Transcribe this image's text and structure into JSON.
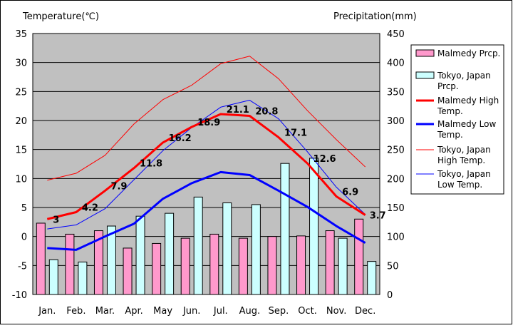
{
  "chart_data": {
    "type": "bar",
    "categories": [
      "Jan.",
      "Feb.",
      "Mar.",
      "Apr.",
      "May",
      "Jun.",
      "Jul.",
      "Aug.",
      "Sep.",
      "Oct.",
      "Nov.",
      "Dec."
    ],
    "y_left_label": "Temperature(℃)",
    "y_right_label": "Precipitation(mm)",
    "y_left_range": [
      -10,
      35
    ],
    "y_right_range": [
      0,
      450
    ],
    "y_left_ticks": [
      "35",
      "30",
      "25",
      "20",
      "15",
      "10",
      "5",
      "0",
      "-5",
      "-10"
    ],
    "y_right_ticks": [
      "450",
      "400",
      "350",
      "300",
      "250",
      "200",
      "150",
      "100",
      "50",
      "0"
    ],
    "grid": true,
    "legend_position": "right",
    "bar_series": [
      {
        "name": "Malmedy Prcp.",
        "color": "#ff99cc",
        "values": [
          123,
          104,
          110,
          80,
          88,
          97,
          104,
          97,
          100,
          101,
          110,
          130
        ]
      },
      {
        "name": "Tokyo, Japan Prcp.",
        "color": "#ccffff",
        "values": [
          60,
          56,
          118,
          135,
          140,
          168,
          158,
          155,
          226,
          235,
          97,
          57
        ]
      }
    ],
    "line_series": [
      {
        "name": "Malmedy High Temp.",
        "color": "#ff0000",
        "width": "thick",
        "values": [
          3,
          4.2,
          7.9,
          11.8,
          16.2,
          18.9,
          21.1,
          20.8,
          17.1,
          12.6,
          6.9,
          3.7
        ],
        "labels": [
          "3",
          "4.2",
          "7.9",
          "11.8",
          "16.2",
          "18.9",
          "21.1",
          "20.8",
          "17.1",
          "12.6",
          "6.9",
          "3.7"
        ]
      },
      {
        "name": "Malmedy Low Temp.",
        "color": "#0000ff",
        "width": "thick",
        "values": [
          -2,
          -2.3,
          0,
          2.2,
          6.5,
          9.2,
          11.1,
          10.6,
          7.9,
          5.1,
          1.8,
          -1.1
        ]
      },
      {
        "name": "Tokyo, Japan High Temp.",
        "color": "#ff0000",
        "width": "thin",
        "values": [
          9.7,
          10.9,
          14,
          19.4,
          23.6,
          26.1,
          29.8,
          31.1,
          27.2,
          21.7,
          16.7,
          12
        ]
      },
      {
        "name": "Tokyo, Japan Low Temp.",
        "color": "#0000ff",
        "width": "thin",
        "values": [
          1.3,
          2,
          4.8,
          9.8,
          14.8,
          18.8,
          22.3,
          23.5,
          20.3,
          14.6,
          8.5,
          3.8
        ]
      }
    ],
    "legend": [
      [
        "Malmedy Prcp."
      ],
      [
        "Tokyo, Japan",
        "Prcp."
      ],
      [
        "Malmedy High",
        "Temp."
      ],
      [
        "Malmedy Low",
        "Temp."
      ],
      [
        "Tokyo, Japan",
        "High Temp."
      ],
      [
        "Tokyo, Japan",
        "Low Temp."
      ]
    ]
  }
}
